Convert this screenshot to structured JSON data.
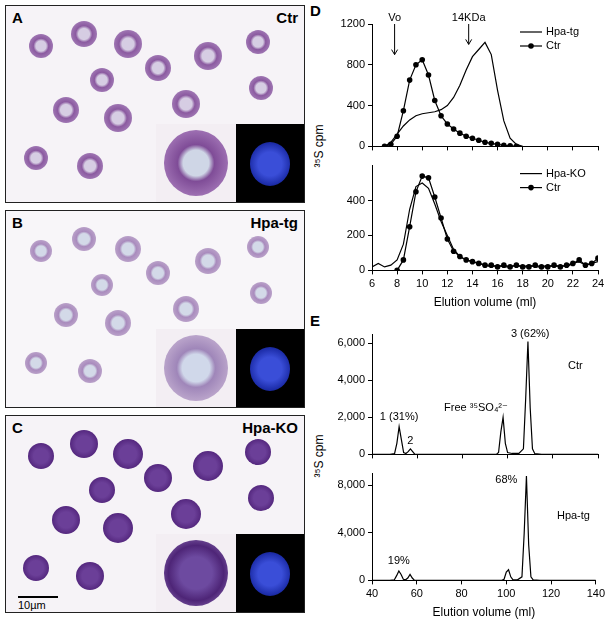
{
  "panels": [
    {
      "letter": "A",
      "label": "Ctr"
    },
    {
      "letter": "B",
      "label": "Hpa-tg"
    },
    {
      "letter": "C",
      "label": "Hpa-KO",
      "scale_bar": "10µm"
    }
  ],
  "chart_data": [
    {
      "panel": "D",
      "type": "line",
      "ylabel": "³⁵S cpm",
      "xlabel": "Elution volume (ml)",
      "subplots": [
        {
          "type": "line",
          "legend": "upper right",
          "grid": false,
          "tick_labels": "y",
          "x": [
            6,
            6.5,
            7,
            7.5,
            8,
            8.5,
            9,
            9.5,
            10,
            10.5,
            11,
            11.5,
            12,
            12.5,
            13,
            13.5,
            14,
            14.5,
            15,
            15.5,
            16,
            16.5,
            17,
            17.5,
            18,
            18.5,
            19,
            19.5,
            20,
            20.5,
            21,
            21.5,
            22,
            22.5,
            23,
            23.5,
            24
          ],
          "xlim": [
            6,
            24
          ],
          "xticks": [
            6,
            8,
            10,
            12,
            14,
            16,
            18,
            20,
            22,
            24
          ],
          "ylim": [
            0,
            1200
          ],
          "yticks": [
            0,
            400,
            800,
            1200
          ],
          "arrows": [
            {
              "text": "Vo",
              "x": 7.8,
              "y": 900
            },
            {
              "text": "14KDa",
              "x": 13.7,
              "y": 1000
            }
          ],
          "series": [
            {
              "name": "Hpa-tg",
              "color": "#000000",
              "marker": "none",
              "line_style": "solid",
              "values": [
                null,
                null,
                0,
                40,
                120,
                200,
                260,
                300,
                320,
                330,
                340,
                360,
                400,
                480,
                600,
                750,
                880,
                950,
                1020,
                900,
                550,
                250,
                80,
                20,
                0,
                null,
                null,
                null,
                null,
                null,
                null,
                null,
                null,
                null,
                null,
                null,
                null
              ]
            },
            {
              "name": "Ctr",
              "color": "#000000",
              "marker": "circle",
              "line_style": "solid",
              "values": [
                null,
                null,
                0,
                20,
                100,
                350,
                650,
                800,
                850,
                700,
                450,
                300,
                220,
                170,
                130,
                100,
                80,
                60,
                40,
                30,
                20,
                10,
                5,
                0,
                null,
                null,
                null,
                null,
                null,
                null,
                null,
                null,
                null,
                null,
                null,
                null,
                null
              ]
            }
          ]
        },
        {
          "type": "line",
          "legend": "upper right",
          "grid": false,
          "x": [
            6,
            6.5,
            7,
            7.5,
            8,
            8.5,
            9,
            9.5,
            10,
            10.5,
            11,
            11.5,
            12,
            12.5,
            13,
            13.5,
            14,
            14.5,
            15,
            15.5,
            16,
            16.5,
            17,
            17.5,
            18,
            18.5,
            19,
            19.5,
            20,
            20.5,
            21,
            21.5,
            22,
            22.5,
            23,
            23.5,
            24
          ],
          "xlim": [
            6,
            24
          ],
          "xticks": [
            6,
            8,
            10,
            12,
            14,
            16,
            18,
            20,
            22,
            24
          ],
          "ylim": [
            0,
            600
          ],
          "yticks": [
            0,
            200,
            400
          ],
          "series": [
            {
              "name": "Hpa-KO",
              "color": "#000000",
              "marker": "none",
              "line_style": "solid",
              "values": [
                20,
                40,
                20,
                30,
                60,
                150,
                350,
                480,
                500,
                470,
                380,
                280,
                200,
                120,
                80,
                60,
                50,
                40,
                30,
                20,
                30,
                20,
                20,
                30,
                20,
                30,
                20,
                20,
                30,
                20,
                30,
                20,
                40,
                50,
                30,
                40,
                50
              ]
            },
            {
              "name": "Ctr",
              "color": "#000000",
              "marker": "circle",
              "line_style": "solid",
              "values": [
                null,
                null,
                null,
                null,
                0,
                60,
                250,
                450,
                540,
                530,
                420,
                300,
                180,
                110,
                80,
                60,
                50,
                40,
                30,
                30,
                20,
                30,
                20,
                30,
                20,
                20,
                30,
                20,
                20,
                30,
                20,
                30,
                40,
                60,
                30,
                40,
                70
              ]
            }
          ]
        }
      ]
    },
    {
      "panel": "E",
      "type": "line",
      "ylabel": "³⁵S cpm",
      "xlabel": "Elution volume (ml)",
      "subplots": [
        {
          "type": "line",
          "grid": false,
          "tick_labels": "y",
          "x": [
            40,
            48,
            50,
            51,
            52,
            53,
            54,
            55,
            56,
            57,
            58,
            59,
            62,
            80,
            95,
            96,
            97,
            98,
            99,
            100,
            102,
            105,
            107,
            108,
            109,
            110,
            111,
            112,
            115,
            120,
            130,
            140
          ],
          "xlim": [
            40,
            140
          ],
          "xticks": [
            40,
            60,
            80,
            100,
            120,
            140
          ],
          "ylim": [
            0,
            6500
          ],
          "yticks": [
            0,
            {
              "value": 2000,
              "label": "2,000"
            },
            {
              "value": 4000,
              "label": "4,000"
            },
            {
              "value": 6000,
              "label": "6,000"
            }
          ],
          "annotations": [
            {
              "text": "1 (31%)",
              "x": 52,
              "y": 1700
            },
            {
              "text": "2",
              "x": 57,
              "y": 450
            },
            {
              "text": "Free ³⁵SO₄²⁻",
              "x": 86,
              "y": 2200
            },
            {
              "text": "3 (62%)",
              "x": 110,
              "y": 6200
            },
            {
              "text": "Ctr",
              "x": 130,
              "y": 4500
            }
          ],
          "series": [
            {
              "name": "Ctr",
              "color": "#000000",
              "marker": "none",
              "line_style": "solid",
              "values": [
                0,
                0,
                50,
                600,
                1500,
                800,
                100,
                50,
                150,
                300,
                150,
                0,
                0,
                0,
                0,
                100,
                1200,
                2000,
                600,
                100,
                50,
                50,
                300,
                3000,
                6100,
                2500,
                300,
                50,
                0,
                0,
                0,
                0
              ]
            }
          ]
        },
        {
          "type": "line",
          "grid": false,
          "x": [
            40,
            48,
            50,
            51,
            52,
            53,
            54,
            55,
            56,
            57,
            58,
            59,
            62,
            80,
            95,
            98,
            99,
            100,
            101,
            102,
            103,
            105,
            107,
            108,
            109,
            110,
            111,
            112,
            115,
            120,
            130,
            140
          ],
          "xlim": [
            40,
            140
          ],
          "xticks": [
            40,
            60,
            80,
            100,
            120,
            140
          ],
          "ylim": [
            0,
            9000
          ],
          "yticks": [
            0,
            {
              "value": 4000,
              "label": "4,000"
            },
            {
              "value": 8000,
              "label": "8,000"
            }
          ],
          "annotations": [
            {
              "text": "19%",
              "x": 52,
              "y": 1200
            },
            {
              "text": "68%",
              "x": 100,
              "y": 8000
            },
            {
              "text": "Hpa-tg",
              "x": 130,
              "y": 5000
            }
          ],
          "series": [
            {
              "name": "Hpa-tg",
              "color": "#000000",
              "marker": "none",
              "line_style": "solid",
              "values": [
                0,
                0,
                50,
                400,
                800,
                500,
                100,
                50,
                200,
                500,
                200,
                0,
                0,
                0,
                0,
                0,
                100,
                700,
                900,
                300,
                50,
                50,
                300,
                4000,
                8800,
                3000,
                300,
                50,
                0,
                0,
                0,
                0
              ]
            }
          ]
        }
      ]
    }
  ]
}
